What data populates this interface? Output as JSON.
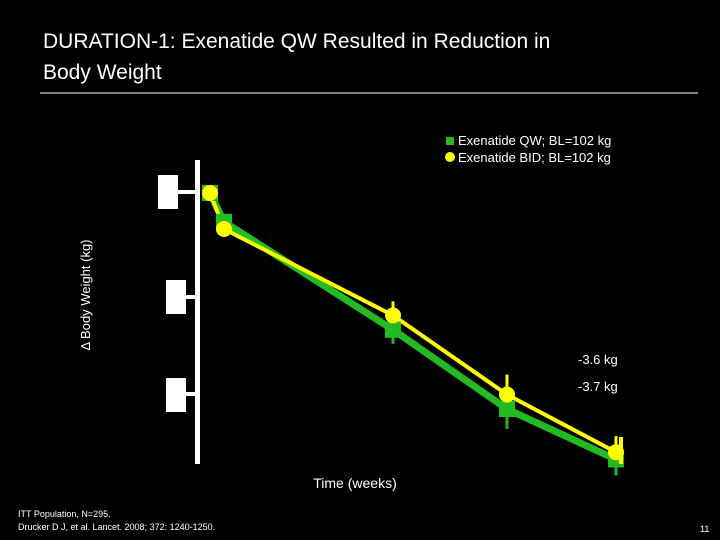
{
  "slide": {
    "title_line1": "DURATION-1: Exenatide QW Resulted in Reduction in",
    "title_line2": "Body Weight",
    "footnote_line1": "ITT Population, N=295.",
    "footnote_line2": "Drucker D J, et al. Lancet. 2008; 372: 1240-1250.",
    "page_number": "11"
  },
  "chart_data": {
    "type": "line",
    "xlabel": "Time (weeks)",
    "ylabel": "Δ Body Weight (kg)",
    "x": [
      0,
      1,
      2,
      3,
      4
    ],
    "legend_position": "top-right",
    "grid": false,
    "series": [
      {
        "name": "Exenatide QW; BL=102 kg",
        "color": "#22bb22",
        "marker": "square",
        "values": [
          0,
          -0.4,
          -1.9,
          -3.0,
          -3.7
        ]
      },
      {
        "name": "Exenatide BID; BL=102 kg",
        "color": "#ffff00",
        "marker": "circle",
        "values": [
          0,
          -0.5,
          -1.7,
          -2.8,
          -3.6
        ]
      }
    ],
    "annotations": [
      "-3.6 kg",
      "-3.7 kg"
    ]
  }
}
